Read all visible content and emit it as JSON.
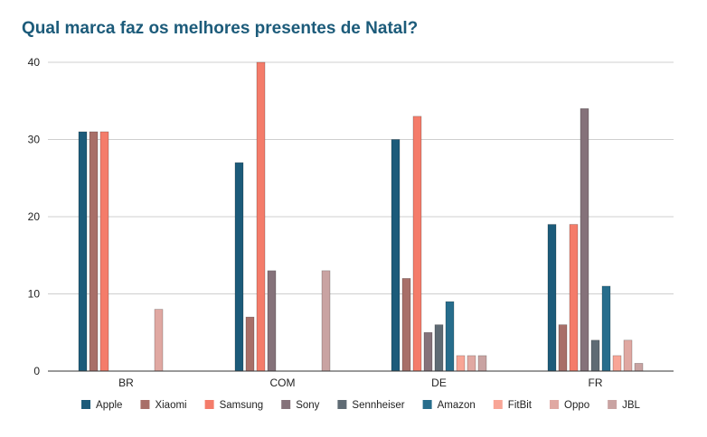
{
  "colors": {
    "title": "#1c5b7a",
    "grid": "#cfcfcf",
    "axis": "#333333",
    "text": "#222222"
  },
  "chart_data": {
    "type": "bar",
    "title": "Qual marca faz os melhores presentes de Natal?",
    "xlabel": "",
    "ylabel": "",
    "ylim": [
      0,
      40
    ],
    "yticks": [
      "0",
      "10",
      "20",
      "30",
      "40"
    ],
    "grid": true,
    "legend_position": "bottom",
    "categories": [
      "BR",
      "COM",
      "DE",
      "FR"
    ],
    "series": [
      {
        "name": "Apple",
        "color": "#1c5b7a",
        "values": [
          31,
          27,
          30,
          19
        ]
      },
      {
        "name": "Xiaomi",
        "color": "#a86f68",
        "values": [
          31,
          7,
          12,
          6
        ]
      },
      {
        "name": "Samsung",
        "color": "#f47c6a",
        "values": [
          31,
          40,
          33,
          19
        ]
      },
      {
        "name": "Sony",
        "color": "#85727a",
        "values": [
          null,
          13,
          5,
          34
        ]
      },
      {
        "name": "Sennheiser",
        "color": "#5f6b74",
        "values": [
          null,
          null,
          6,
          4
        ]
      },
      {
        "name": "Amazon",
        "color": "#276d8c",
        "values": [
          null,
          null,
          9,
          11
        ]
      },
      {
        "name": "FitBit",
        "color": "#f8a596",
        "values": [
          null,
          null,
          2,
          2
        ]
      },
      {
        "name": "Oppo",
        "color": "#e0a8a2",
        "values": [
          8,
          null,
          2,
          4
        ]
      },
      {
        "name": "JBL",
        "color": "#c9a3a2",
        "values": [
          null,
          13,
          2,
          1
        ]
      }
    ]
  }
}
